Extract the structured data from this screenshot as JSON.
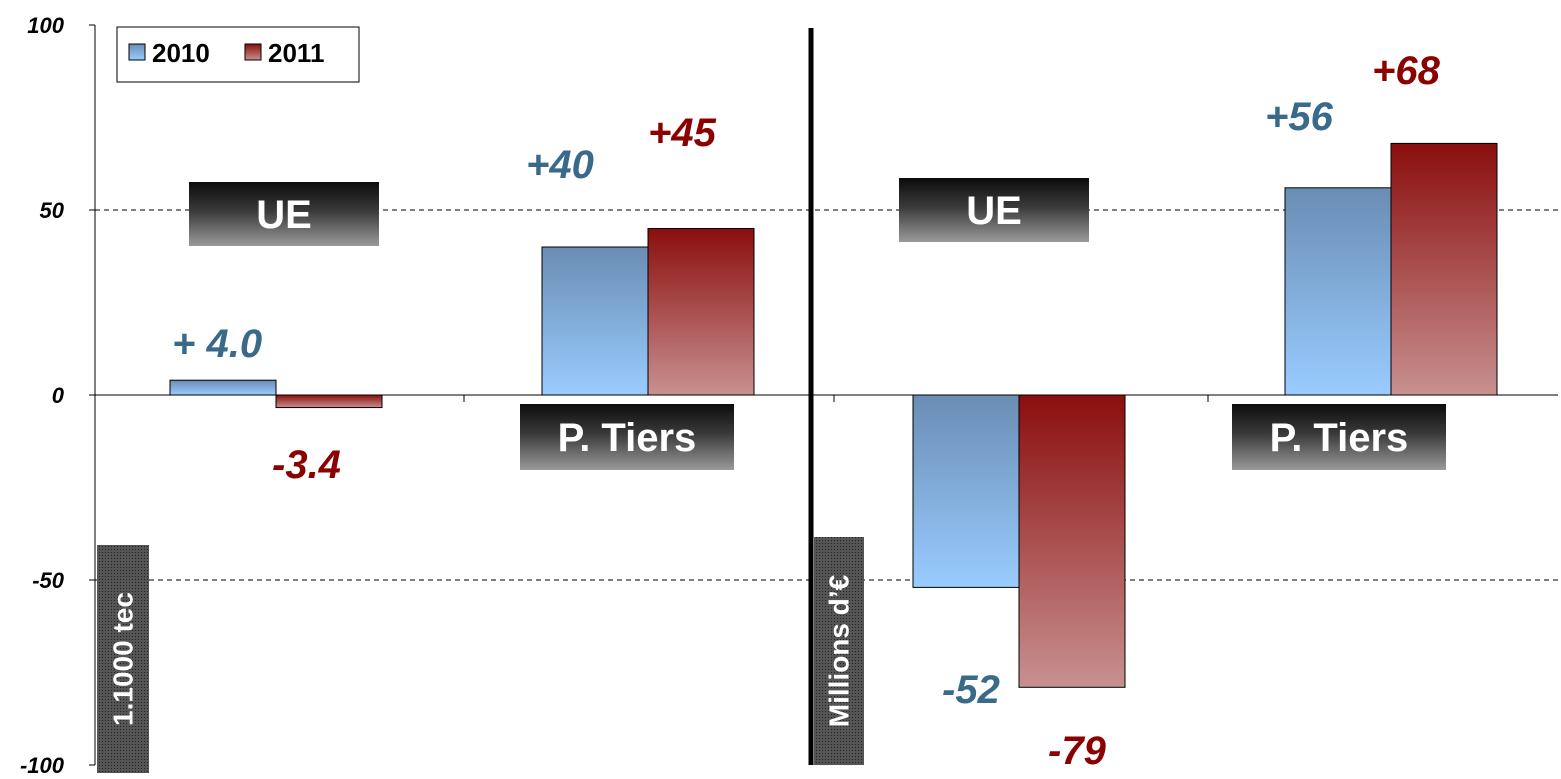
{
  "chart_data": {
    "type": "bar",
    "ylim": [
      -100,
      100
    ],
    "yticks": [
      100,
      50,
      0,
      -50,
      -100
    ],
    "ytick_labels": [
      "100",
      "50",
      "0",
      "-50",
      "-100"
    ],
    "grid": "dashed at 50 and -50",
    "legend": {
      "placement": "top-left",
      "entries": [
        "2010",
        "2011"
      ]
    },
    "colors": {
      "2010_top": "#6a8db4",
      "2010_bottom": "#99ccff",
      "2010_label": "#3a6a8a",
      "2011_top": "#8b0e0e",
      "2011_bottom": "#c89090",
      "2011_label": "#8b0000"
    },
    "panels": [
      {
        "unit_label": "1.1000 tec",
        "groups": [
          {
            "category": "UE",
            "values": [
              4.0,
              -3.4
            ],
            "labels": [
              "+ 4.0",
              "-3.4"
            ]
          },
          {
            "category": "P. Tiers",
            "values": [
              40,
              45
            ],
            "labels": [
              "+40",
              "+45"
            ]
          }
        ]
      },
      {
        "unit_label": "Millions d’€",
        "groups": [
          {
            "category": "UE",
            "values": [
              -52,
              -79
            ],
            "labels": [
              "-52",
              "-79"
            ]
          },
          {
            "category": "P. Tiers",
            "values": [
              56,
              68
            ],
            "labels": [
              "+56",
              "+68"
            ]
          }
        ]
      }
    ]
  }
}
